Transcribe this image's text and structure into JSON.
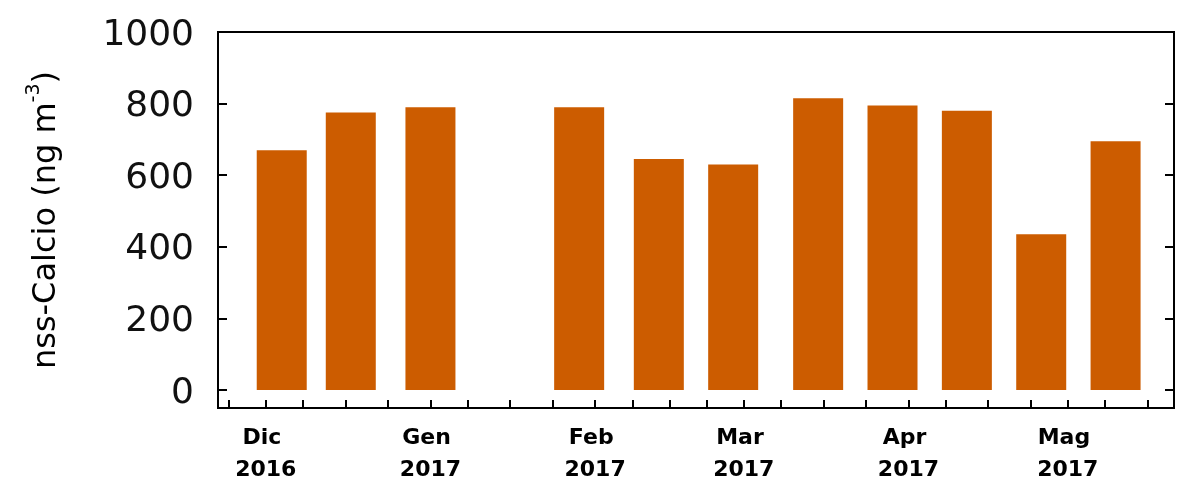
{
  "chart_data": {
    "type": "bar",
    "ylabel": "nss-Calcio (ng m$^{-3}$)",
    "x": [
      "2016-12-04",
      "2016-12-17",
      "2017-01-01",
      "2017-01-29",
      "2017-02-13",
      "2017-02-27",
      "2017-03-15",
      "2017-03-29",
      "2017-04-12",
      "2017-04-26",
      "2017-05-10"
    ],
    "values": [
      670,
      775,
      790,
      790,
      645,
      630,
      815,
      795,
      780,
      435,
      695
    ],
    "color": "#cc5c00",
    "xlim": [
      "2016-11-22",
      "2017-05-21"
    ],
    "xticks": [
      {
        "value": "2016-11-24",
        "label": null
      },
      {
        "value": "2016-12-01",
        "label": "Dic 2016"
      },
      {
        "value": "2016-12-08",
        "label": null
      },
      {
        "value": "2016-12-16",
        "label": null
      },
      {
        "value": "2016-12-24",
        "label": null
      },
      {
        "value": "2017-01-01",
        "label": "Gen 2017"
      },
      {
        "value": "2017-01-08",
        "label": null
      },
      {
        "value": "2017-01-16",
        "label": null
      },
      {
        "value": "2017-01-24",
        "label": null
      },
      {
        "value": "2017-02-01",
        "label": "Feb 2017"
      },
      {
        "value": "2017-02-08",
        "label": null
      },
      {
        "value": "2017-02-15",
        "label": null
      },
      {
        "value": "2017-02-22",
        "label": null
      },
      {
        "value": "2017-03-01",
        "label": "Mar 2017"
      },
      {
        "value": "2017-03-08",
        "label": null
      },
      {
        "value": "2017-03-16",
        "label": null
      },
      {
        "value": "2017-03-24",
        "label": null
      },
      {
        "value": "2017-04-01",
        "label": "Apr 2017"
      },
      {
        "value": "2017-04-08",
        "label": null
      },
      {
        "value": "2017-04-16",
        "label": null
      },
      {
        "value": "2017-04-24",
        "label": null
      },
      {
        "value": "2017-05-01",
        "label": "Mag 2017"
      },
      {
        "value": "2017-05-08",
        "label": null
      },
      {
        "value": "2017-05-16",
        "label": null
      }
    ],
    "ylim": [
      -50,
      1000
    ],
    "yticks": [
      0,
      200,
      400,
      600,
      800,
      1000
    ]
  }
}
